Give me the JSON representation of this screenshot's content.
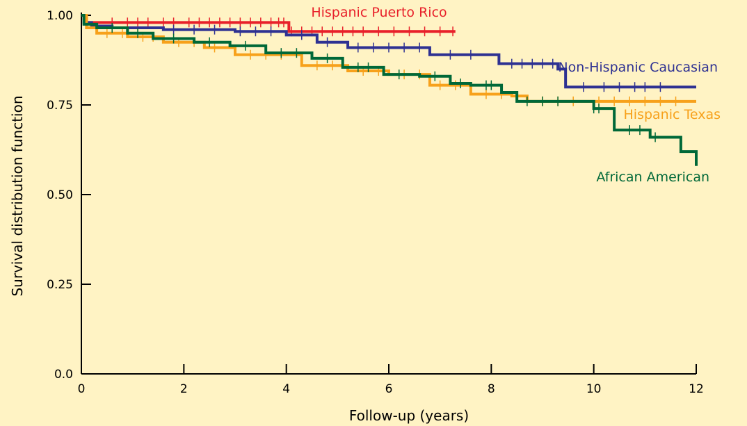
{
  "chart_data": {
    "type": "line",
    "subtype": "kaplan-meier step",
    "title": "",
    "xlabel": "Follow-up (years)",
    "ylabel": "Survival distribution function",
    "xlim": [
      0,
      12
    ],
    "ylim": [
      0,
      1
    ],
    "x_ticks": [
      0,
      2,
      4,
      6,
      8,
      10,
      12
    ],
    "x_tick_labels": [
      "0",
      "2",
      "4",
      "6",
      "8",
      "10",
      "12"
    ],
    "y_ticks": [
      0,
      0.25,
      0.5,
      0.75,
      1.0
    ],
    "y_tick_labels": [
      "0.0",
      "0.25",
      "0.50",
      "0.75",
      "1.00"
    ],
    "grid": false,
    "legend": "inline labels at line ends",
    "background": "#fff3c4",
    "series": [
      {
        "name": "Hispanic Puerto Rico",
        "color": "#e8202a",
        "x": [
          0,
          0.05,
          0.1,
          0.3,
          3.97,
          4.05,
          7.3
        ],
        "y": [
          1.0,
          0.99,
          0.98,
          0.98,
          0.98,
          0.955,
          0.955
        ],
        "censored": [
          0.6,
          0.9,
          1.1,
          1.3,
          1.6,
          1.8,
          2.1,
          2.3,
          2.5,
          2.7,
          2.9,
          3.1,
          3.3,
          3.5,
          3.7,
          3.85,
          3.95,
          4.1,
          4.3,
          4.5,
          4.7,
          4.9,
          5.1,
          5.3,
          5.5,
          5.8,
          6.1,
          6.4,
          6.7,
          7.0,
          7.25
        ]
      },
      {
        "name": "Non-Hispanic Caucasian",
        "color": "#2e3192",
        "x": [
          0,
          0.05,
          0.2,
          0.6,
          1.6,
          3.0,
          4.0,
          4.6,
          5.2,
          6.8,
          8.15,
          9.3,
          9.45,
          12.0
        ],
        "y": [
          1.0,
          0.98,
          0.97,
          0.965,
          0.96,
          0.955,
          0.945,
          0.925,
          0.91,
          0.89,
          0.865,
          0.85,
          0.8,
          0.8
        ],
        "censored": [
          1.8,
          2.2,
          2.6,
          3.1,
          3.4,
          3.7,
          4.3,
          4.8,
          5.4,
          5.7,
          6.0,
          6.3,
          6.6,
          7.2,
          7.6,
          8.4,
          8.6,
          8.8,
          9.0,
          9.2,
          9.8,
          10.2,
          10.5,
          10.8,
          11.0,
          11.3
        ]
      },
      {
        "name": "Hispanic Texas",
        "color": "#f7a11b",
        "x": [
          0,
          0.1,
          0.3,
          0.9,
          1.6,
          2.4,
          3.0,
          4.3,
          5.2,
          6.0,
          6.8,
          7.6,
          8.4,
          8.7,
          12.0
        ],
        "y": [
          1.0,
          0.965,
          0.95,
          0.94,
          0.925,
          0.91,
          0.89,
          0.86,
          0.845,
          0.835,
          0.805,
          0.78,
          0.775,
          0.76,
          0.76
        ],
        "censored": [
          0.5,
          0.8,
          1.2,
          1.4,
          1.9,
          2.2,
          2.6,
          3.3,
          3.6,
          3.9,
          4.6,
          4.9,
          5.5,
          5.8,
          6.3,
          6.6,
          7.0,
          7.3,
          7.9,
          8.2,
          9.0,
          9.3,
          9.6,
          10.1,
          10.4,
          10.7,
          11.0,
          11.3,
          11.6
        ]
      },
      {
        "name": "African American",
        "color": "#006838",
        "x": [
          0,
          0.05,
          0.3,
          0.9,
          1.4,
          2.2,
          2.9,
          3.6,
          4.5,
          5.1,
          5.9,
          6.6,
          7.2,
          7.6,
          8.2,
          8.5,
          10.0,
          10.4,
          11.1,
          11.7,
          12.0
        ],
        "y": [
          1.0,
          0.975,
          0.965,
          0.95,
          0.935,
          0.925,
          0.915,
          0.895,
          0.88,
          0.855,
          0.835,
          0.83,
          0.81,
          0.805,
          0.785,
          0.76,
          0.74,
          0.68,
          0.66,
          0.62,
          0.58
        ],
        "censored": [
          0.6,
          1.1,
          1.8,
          2.5,
          3.2,
          3.9,
          4.2,
          4.8,
          5.4,
          5.6,
          6.2,
          6.9,
          7.4,
          7.9,
          8.0,
          8.7,
          9.0,
          9.3,
          10.0,
          10.1,
          10.7,
          10.9,
          11.2
        ]
      }
    ]
  }
}
